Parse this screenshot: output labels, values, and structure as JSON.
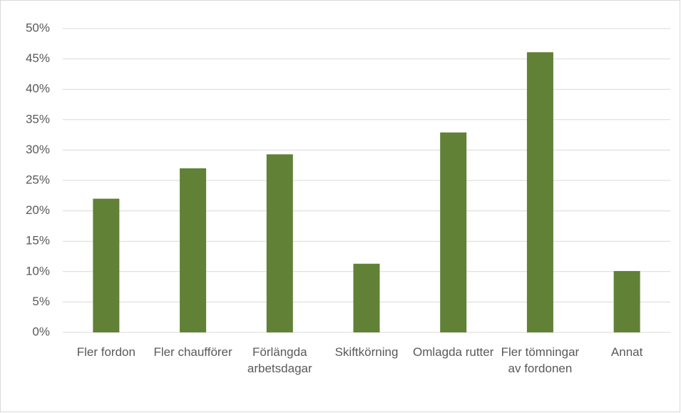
{
  "chart_data": {
    "type": "bar",
    "categories": [
      "Fler fordon",
      "Fler chaufförer",
      "Förlängda arbetsdagar",
      "Skiftkörning",
      "Omlagda rutter",
      "Fler tömningar av fordonen",
      "Annat"
    ],
    "values": [
      22,
      27,
      29.3,
      11.3,
      32.9,
      46.1,
      10.1
    ],
    "color": "#618136",
    "ylim": [
      0,
      50
    ],
    "yticks": [
      {
        "value": 0,
        "label": "0%"
      },
      {
        "value": 5,
        "label": "5%"
      },
      {
        "value": 10,
        "label": "10%"
      },
      {
        "value": 15,
        "label": "15%"
      },
      {
        "value": 20,
        "label": "20%"
      },
      {
        "value": 25,
        "label": "25%"
      },
      {
        "value": 30,
        "label": "30%"
      },
      {
        "value": 35,
        "label": "35%"
      },
      {
        "value": 40,
        "label": "40%"
      },
      {
        "value": 45,
        "label": "45%"
      },
      {
        "value": 50,
        "label": "50%"
      }
    ],
    "grid": true
  }
}
